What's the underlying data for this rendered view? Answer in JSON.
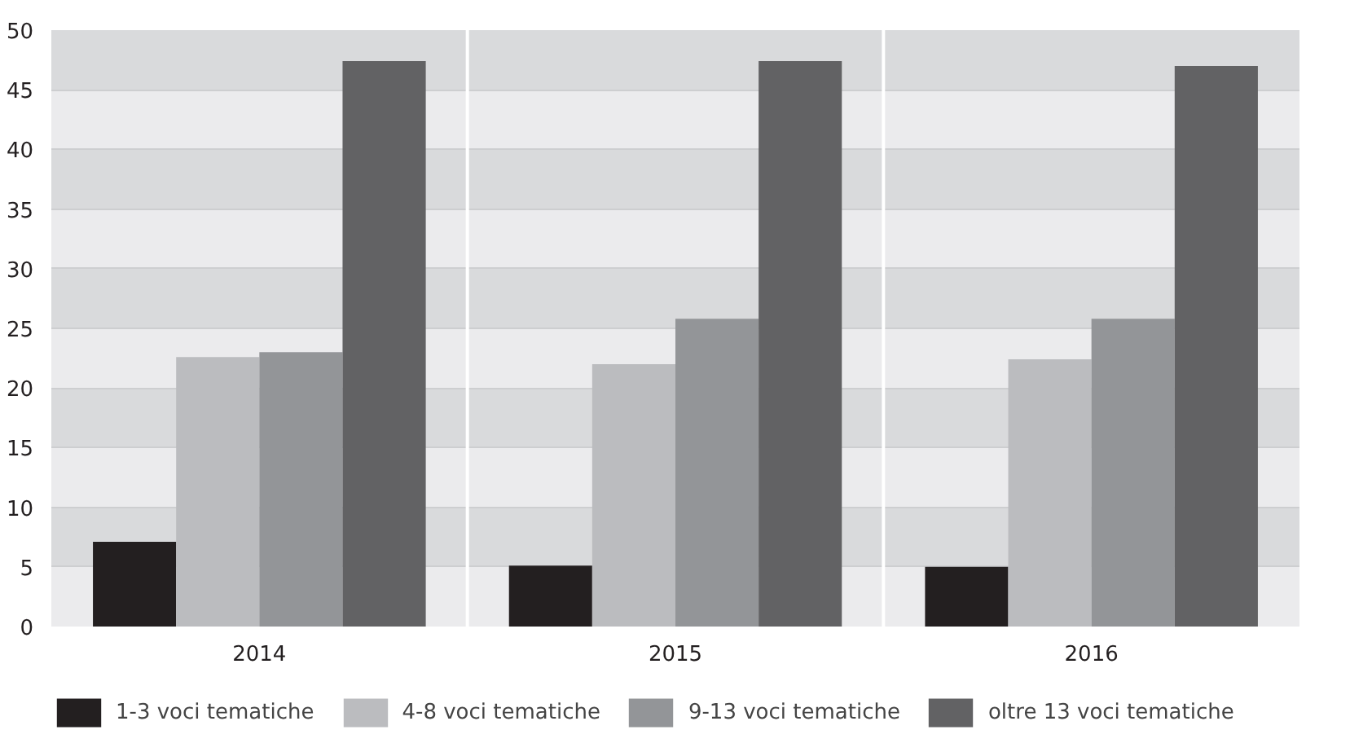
{
  "chart_data": {
    "type": "bar",
    "categories": [
      "2014",
      "2015",
      "2016"
    ],
    "series": [
      {
        "name": "1-3 voci tematiche",
        "color": "#231f20",
        "values": [
          7.1,
          5.1,
          5.0
        ]
      },
      {
        "name": "4-8 voci tematiche",
        "color": "#bbbcbf",
        "values": [
          22.6,
          22.0,
          22.4
        ]
      },
      {
        "name": "9-13 voci tematiche",
        "color": "#939598",
        "values": [
          23.0,
          25.8,
          25.8
        ]
      },
      {
        "name": "oltre 13 voci tematiche",
        "color": "#626264",
        "values": [
          47.4,
          47.4,
          47.0
        ]
      }
    ],
    "ylim": [
      0,
      50
    ],
    "yticks": [
      0,
      5,
      10,
      15,
      20,
      25,
      30,
      35,
      40,
      45,
      50
    ],
    "grid": "y",
    "legend": "bottom"
  }
}
